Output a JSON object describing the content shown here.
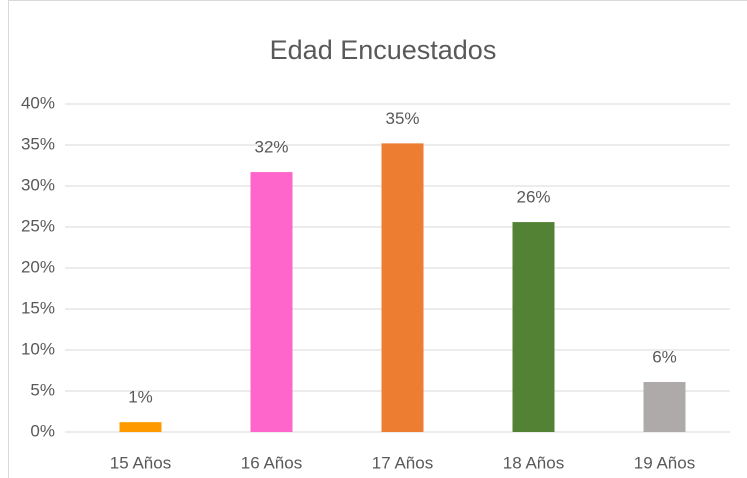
{
  "chart_data": {
    "type": "bar",
    "title": "Edad Encuestados",
    "categories": [
      "15 Años",
      "16 Años",
      "17 Años",
      "18 Años",
      "19 Años"
    ],
    "values": [
      1.2,
      31.7,
      35.2,
      25.6,
      6.1
    ],
    "value_labels": [
      "1%",
      "32%",
      "35%",
      "26%",
      "6%"
    ],
    "colors": [
      "#ff9900",
      "#ff66cc",
      "#ed7d31",
      "#548235",
      "#aeaaaa"
    ],
    "ylim": [
      0,
      40
    ],
    "yticks": [
      {
        "value": 0,
        "label": "0%"
      },
      {
        "value": 5,
        "label": "5%"
      },
      {
        "value": 10,
        "label": "10%"
      },
      {
        "value": 15,
        "label": "15%"
      },
      {
        "value": 20,
        "label": "20%"
      },
      {
        "value": 25,
        "label": "25%"
      },
      {
        "value": 30,
        "label": "30%"
      },
      {
        "value": 35,
        "label": "35%"
      },
      {
        "value": 40,
        "label": "40%"
      }
    ],
    "grid": true
  }
}
